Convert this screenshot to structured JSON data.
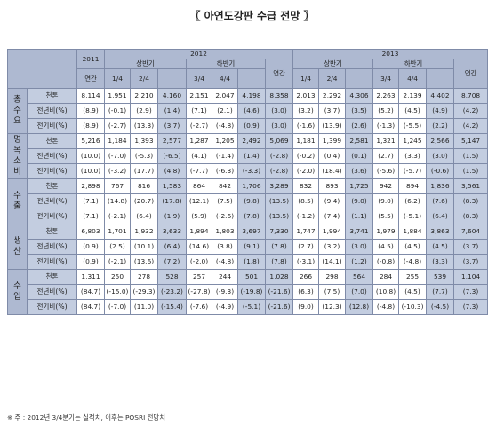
{
  "title": "〖 아연도강판 수급 전망 〗",
  "header": {
    "year_2011": "2011",
    "annual": "연간",
    "year_2012": "2012",
    "year_2013": "2013",
    "first_half": "상반기",
    "second_half": "하반기",
    "q": [
      "1/4",
      "2/4",
      "3/4",
      "4/4"
    ]
  },
  "sections": [
    {
      "name": "총수요",
      "rows": [
        {
          "label": "천톤",
          "values": [
            "8,114",
            "1,951",
            "2,210",
            "4,160",
            "2,151",
            "2,047",
            "4,198",
            "8,358",
            "2,013",
            "2,292",
            "4,306",
            "2,263",
            "2,139",
            "4,402",
            "8,708"
          ]
        },
        {
          "label": "전년비(%)",
          "values": [
            "(8.9)",
            "(-0.1)",
            "(2.9)",
            "(1.4)",
            "(7.1)",
            "(2.1)",
            "(4.6)",
            "(3.0)",
            "(3.2)",
            "(3.7)",
            "(3.5)",
            "(5.2)",
            "(4.5)",
            "(4.9)",
            "(4.2)"
          ]
        },
        {
          "label": "전기비(%)",
          "values": [
            "(8.9)",
            "(-2.7)",
            "(13.3)",
            "(3.7)",
            "(-2.7)",
            "(-4.8)",
            "(0.9)",
            "(3.0)",
            "(-1.6)",
            "(13.9)",
            "(2.6)",
            "(-1.3)",
            "(-5.5)",
            "(2.2)",
            "(4.2)"
          ]
        }
      ]
    },
    {
      "name": "명목소비",
      "rows": [
        {
          "label": "천톤",
          "values": [
            "5,216",
            "1,184",
            "1,393",
            "2,577",
            "1,287",
            "1,205",
            "2,492",
            "5,069",
            "1,181",
            "1,399",
            "2,581",
            "1,321",
            "1,245",
            "2,566",
            "5,147"
          ]
        },
        {
          "label": "전년비(%)",
          "values": [
            "(10.0)",
            "(-7.0)",
            "(-5.3)",
            "(-6.5)",
            "(4.1)",
            "(-1.4)",
            "(1.4)",
            "(-2.8)",
            "(-0.2)",
            "(0.4)",
            "(0.1)",
            "(2.7)",
            "(3.3)",
            "(3.0)",
            "(1.5)"
          ]
        },
        {
          "label": "전기비(%)",
          "values": [
            "(10.0)",
            "(-3.2)",
            "(17.7)",
            "(4.8)",
            "(-7.7)",
            "(-6.3)",
            "(-3.3)",
            "(-2.8)",
            "(-2.0)",
            "(18.4)",
            "(3.6)",
            "(-5.6)",
            "(-5.7)",
            "(-0.6)",
            "(1.5)"
          ]
        }
      ]
    },
    {
      "name": "수출",
      "rows": [
        {
          "label": "천톤",
          "values": [
            "2,898",
            "767",
            "816",
            "1,583",
            "864",
            "842",
            "1,706",
            "3,289",
            "832",
            "893",
            "1,725",
            "942",
            "894",
            "1,836",
            "3,561"
          ]
        },
        {
          "label": "전년비(%)",
          "values": [
            "(7.1)",
            "(14.8)",
            "(20.7)",
            "(17.8)",
            "(12.1)",
            "(7.5)",
            "(9.8)",
            "(13.5)",
            "(8.5)",
            "(9.4)",
            "(9.0)",
            "(9.0)",
            "(6.2)",
            "(7.6)",
            "(8.3)"
          ]
        },
        {
          "label": "전기비(%)",
          "values": [
            "(7.1)",
            "(-2.1)",
            "(6.4)",
            "(1.9)",
            "(5.9)",
            "(-2.6)",
            "(7.8)",
            "(13.5)",
            "(-1.2)",
            "(7.4)",
            "(1.1)",
            "(5.5)",
            "(-5.1)",
            "(6.4)",
            "(8.3)"
          ]
        }
      ]
    },
    {
      "name": "생산",
      "rows": [
        {
          "label": "천톤",
          "values": [
            "6,803",
            "1,701",
            "1,932",
            "3,633",
            "1,894",
            "1,803",
            "3,697",
            "7,330",
            "1,747",
            "1,994",
            "3,741",
            "1,979",
            "1,884",
            "3,863",
            "7,604"
          ]
        },
        {
          "label": "전년비(%)",
          "values": [
            "(0.9)",
            "(2.5)",
            "(10.1)",
            "(6.4)",
            "(14.6)",
            "(3.8)",
            "(9.1)",
            "(7.8)",
            "(2.7)",
            "(3.2)",
            "(3.0)",
            "(4.5)",
            "(4.5)",
            "(4.5)",
            "(3.7)"
          ]
        },
        {
          "label": "전기비(%)",
          "values": [
            "(0.9)",
            "(-2.1)",
            "(13.6)",
            "(7.2)",
            "(-2.0)",
            "(-4.8)",
            "(1.8)",
            "(7.8)",
            "(-3.1)",
            "(14.1)",
            "(1.2)",
            "(-0.8)",
            "(-4.8)",
            "(3.3)",
            "(3.7)"
          ]
        }
      ]
    },
    {
      "name": "수입",
      "rows": [
        {
          "label": "천톤",
          "values": [
            "1,311",
            "250",
            "278",
            "528",
            "257",
            "244",
            "501",
            "1,028",
            "266",
            "298",
            "564",
            "284",
            "255",
            "539",
            "1,104"
          ]
        },
        {
          "label": "전년비(%)",
          "values": [
            "(84.7)",
            "(-15.0)",
            "(-29.3)",
            "(-23.2)",
            "(-27.8)",
            "(-9.3)",
            "(-19.8)",
            "(-21.6)",
            "(6.3)",
            "(7.5)",
            "(7.0)",
            "(10.8)",
            "(4.5)",
            "(7.7)",
            "(7.3)"
          ]
        },
        {
          "label": "전기비(%)",
          "values": [
            "(84.7)",
            "(-7.0)",
            "(11.0)",
            "(-15.4)",
            "(-7.6)",
            "(-4.9)",
            "(-5.1)",
            "(-21.6)",
            "(9.0)",
            "(12.3)",
            "(12.8)",
            "(-4.8)",
            "(-10.3)",
            "(-4.5)",
            "(7.3)"
          ]
        }
      ]
    }
  ],
  "footnote": "※ 주 : 2012년 3/4분기는 실적치, 이후는 POSRI 전망치"
}
